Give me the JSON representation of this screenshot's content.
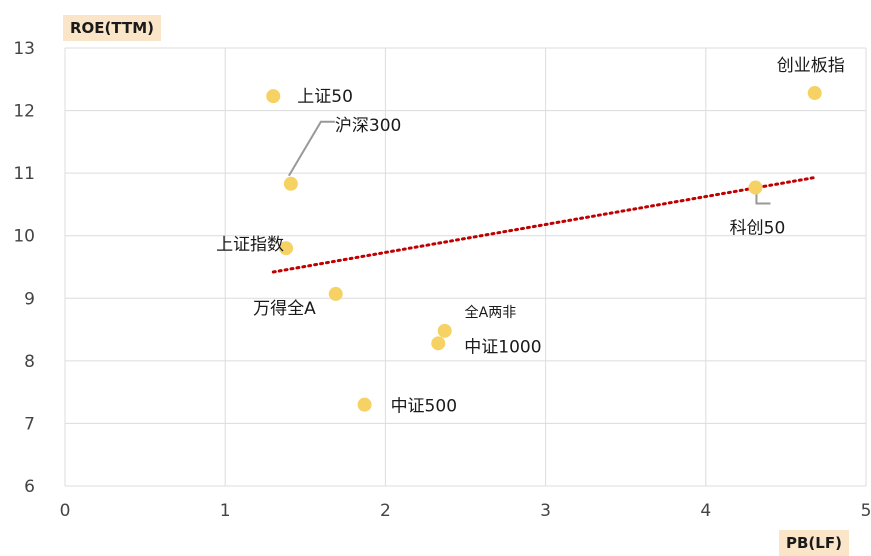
{
  "chart_data": {
    "type": "scatter",
    "xlabel": "PB(LF)",
    "ylabel": "ROE(TTM)",
    "xlim": [
      0,
      5
    ],
    "ylim": [
      6,
      13
    ],
    "xticks": [
      0,
      1,
      2,
      3,
      4,
      5
    ],
    "yticks": [
      6,
      7,
      8,
      9,
      10,
      11,
      12,
      13
    ],
    "grid": true,
    "marker_color": "#f6d264",
    "trendline_color": "#c00000",
    "points": [
      {
        "label": "上证50",
        "x": 1.3,
        "y": 12.23
      },
      {
        "label": "沪深300",
        "x": 1.41,
        "y": 10.83
      },
      {
        "label": "上证指数",
        "x": 1.38,
        "y": 9.8
      },
      {
        "label": "万得全A",
        "x": 1.69,
        "y": 9.07
      },
      {
        "label": "全A两非",
        "x": 2.37,
        "y": 8.48
      },
      {
        "label": "中证1000",
        "x": 2.33,
        "y": 8.28
      },
      {
        "label": "中证500",
        "x": 1.87,
        "y": 7.3
      },
      {
        "label": "科创50",
        "x": 4.31,
        "y": 10.77
      },
      {
        "label": "创业板指",
        "x": 4.68,
        "y": 12.28
      }
    ],
    "trendline": {
      "x": [
        1.3,
        4.68
      ],
      "y": [
        9.42,
        10.93
      ]
    }
  }
}
